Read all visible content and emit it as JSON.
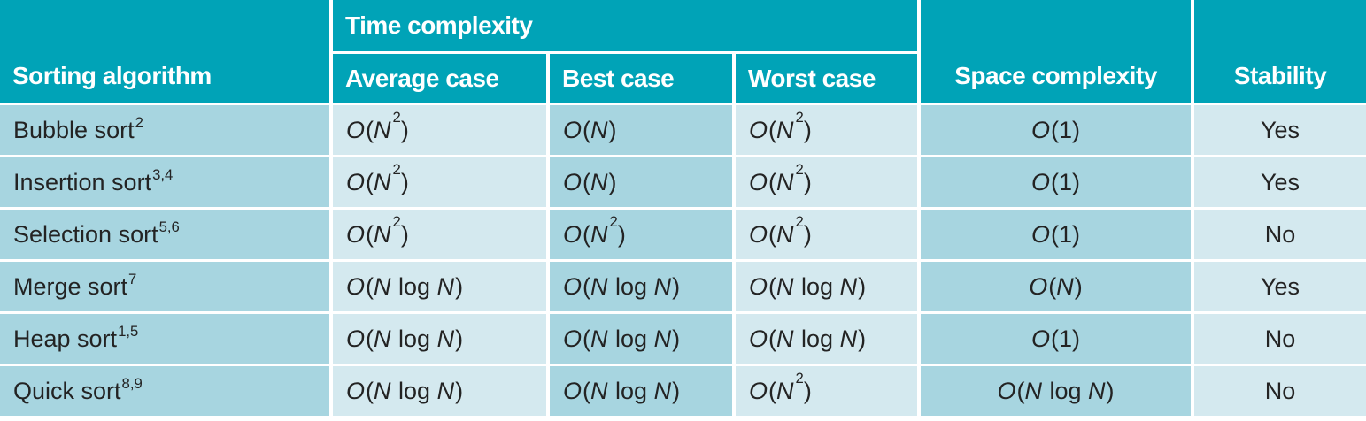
{
  "table": {
    "headers": {
      "sorting_algorithm": "Sorting algorithm",
      "time_complexity": "Time complexity",
      "average_case": "Average case",
      "best_case": "Best case",
      "worst_case": "Worst case",
      "space_complexity": "Space complexity",
      "stability": "Stability"
    },
    "rows": [
      {
        "algorithm": "Bubble sort",
        "footnote": "2",
        "average": "O(N^2)",
        "best": "O(N)",
        "worst": "O(N^2)",
        "space": "O(1)",
        "stability": "Yes"
      },
      {
        "algorithm": "Insertion sort",
        "footnote": "3,4",
        "average": "O(N^2)",
        "best": "O(N)",
        "worst": "O(N^2)",
        "space": "O(1)",
        "stability": "Yes"
      },
      {
        "algorithm": "Selection sort",
        "footnote": "5,6",
        "average": "O(N^2)",
        "best": "O(N^2)",
        "worst": "O(N^2)",
        "space": "O(1)",
        "stability": "No"
      },
      {
        "algorithm": "Merge sort",
        "footnote": "7",
        "average": "O(N log N)",
        "best": "O(N log N)",
        "worst": "O(N log N)",
        "space": "O(N)",
        "stability": "Yes"
      },
      {
        "algorithm": "Heap sort",
        "footnote": "1,5",
        "average": "O(N log N)",
        "best": "O(N log N)",
        "worst": "O(N log N)",
        "space": "O(1)",
        "stability": "No"
      },
      {
        "algorithm": "Quick sort",
        "footnote": "8,9",
        "average": "O(N log N)",
        "best": "O(N log N)",
        "worst": "O(N^2)",
        "space": "O(N log N)",
        "stability": "No"
      }
    ],
    "colors": {
      "header_teal": "#00a3b7",
      "cell_medium": "#a7d5e0",
      "cell_light": "#d4e9ef",
      "separator": "#ffffff",
      "header_text": "#ffffff",
      "body_text": "#232323"
    }
  }
}
